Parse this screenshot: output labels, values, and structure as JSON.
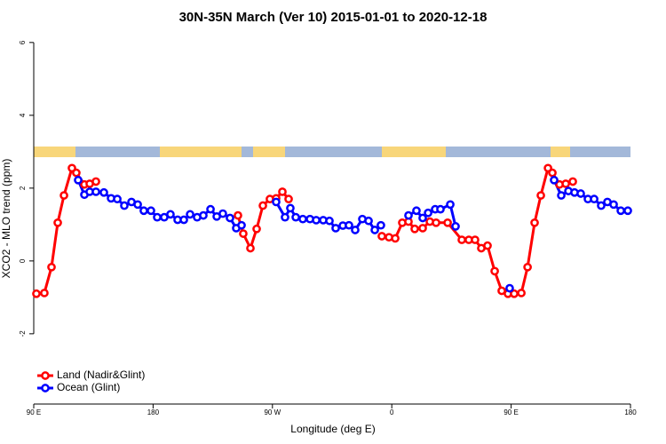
{
  "chart_data": {
    "type": "line",
    "title": "30N-35N March (Ver 10)   2015-01-01 to 2020-12-18",
    "xlabel": "Longitude (deg E)",
    "ylabel": "XCO2 - MLO trend (ppm)",
    "xlim": [
      90,
      540
    ],
    "ylim": [
      -3.93,
      6.24
    ],
    "xticks": [
      {
        "value": 90,
        "label": "90 E"
      },
      {
        "value": 180,
        "label": "180"
      },
      {
        "value": 270,
        "label": "90 W"
      },
      {
        "value": 360,
        "label": "0"
      },
      {
        "value": 450,
        "label": "90 E"
      },
      {
        "value": 540,
        "label": "180"
      }
    ],
    "yticks": [
      6,
      4,
      2,
      0,
      -2
    ],
    "legend": "bottomleft",
    "series": [
      {
        "name": "Land (Nadir&Glint)",
        "color": "#ff0000",
        "x": [
          92.0,
          98.0,
          103.4,
          108.1,
          112.8,
          118.8,
          122.1,
          128.2,
          132.2,
          136.9,
          null,
          244.0,
          248.0,
          253.4,
          258.1,
          262.8,
          268.1,
          272.8,
          277.5,
          282.2,
          null,
          352.5,
          357.9,
          362.6,
          367.9,
          372.6,
          377.3,
          383.3,
          388.7,
          393.4,
          402.1,
          412.8,
          418.1,
          422.8,
          427.5,
          432.2,
          437.6,
          442.9,
          447.6,
          452.3,
          457.7,
          462.4,
          467.7,
          472.4,
          477.8,
          481.1,
          486.5,
          491.2,
          496.5
        ],
        "values": [
          -0.9,
          -0.88,
          -0.17,
          1.05,
          1.8,
          2.55,
          2.42,
          2.1,
          2.12,
          2.18,
          null,
          1.25,
          0.75,
          0.35,
          0.88,
          1.52,
          1.7,
          1.72,
          1.9,
          1.7,
          null,
          0.68,
          0.65,
          0.62,
          1.05,
          1.08,
          0.88,
          0.9,
          1.08,
          1.05,
          1.05,
          0.58,
          0.58,
          0.58,
          0.35,
          0.42,
          -0.28,
          -0.82,
          -0.9,
          -0.9,
          -0.88,
          -0.17,
          1.05,
          1.8,
          2.55,
          2.42,
          2.1,
          2.12,
          2.18
        ]
      },
      {
        "name": "Ocean (Glint)",
        "color": "#0000ff",
        "x": [
          123.5,
          128.2,
          132.2,
          136.9,
          142.9,
          148.3,
          153.0,
          158.3,
          163.7,
          168.4,
          173.0,
          178.4,
          183.1,
          188.4,
          193.1,
          198.5,
          203.2,
          207.9,
          213.2,
          217.9,
          223.3,
          228.0,
          232.6,
          238.0,
          242.7,
          246.7,
          null,
          272.8,
          279.5,
          283.5,
          287.6,
          292.9,
          298.3,
          303.0,
          308.3,
          313.0,
          317.7,
          323.1,
          327.7,
          332.4,
          337.8,
          342.5,
          347.2,
          351.8,
          null,
          372.6,
          378.6,
          383.3,
          387.4,
          392.7,
          396.7,
          404.1,
          408.1,
          null,
          448.9,
          null,
          482.4,
          487.8,
          493.2,
          497.8,
          502.5,
          507.9,
          512.6,
          517.9,
          522.6,
          527.3,
          532.7,
          538.0
        ],
        "values": [
          2.22,
          1.82,
          1.9,
          1.9,
          1.88,
          1.72,
          1.7,
          1.52,
          1.62,
          1.55,
          1.38,
          1.38,
          1.2,
          1.2,
          1.28,
          1.13,
          1.13,
          1.28,
          1.2,
          1.25,
          1.42,
          1.22,
          1.3,
          1.18,
          0.9,
          0.98,
          null,
          1.62,
          1.2,
          1.45,
          1.2,
          1.15,
          1.15,
          1.12,
          1.12,
          1.1,
          0.9,
          0.97,
          0.98,
          0.85,
          1.15,
          1.1,
          0.85,
          0.98,
          null,
          1.25,
          1.38,
          1.18,
          1.32,
          1.42,
          1.42,
          1.55,
          0.95,
          null,
          -0.75,
          null,
          2.22,
          1.8,
          1.92,
          1.88,
          1.85,
          1.7,
          1.7,
          1.52,
          1.62,
          1.55,
          1.38,
          1.38
        ]
      }
    ]
  }
}
